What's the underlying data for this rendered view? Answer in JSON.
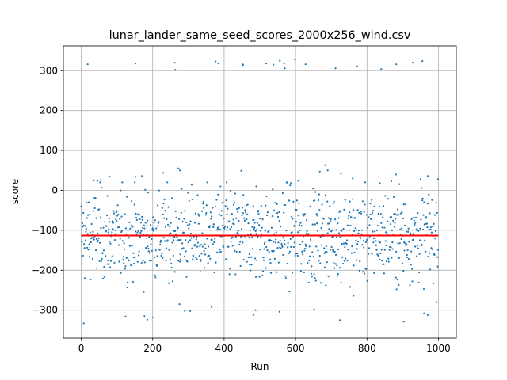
{
  "chart_data": {
    "type": "scatter",
    "title": "lunar_lander_same_seed_scores_2000x256_wind.csv",
    "xlabel": "Run",
    "ylabel": "score",
    "xlim": [
      -50,
      1050
    ],
    "ylim": [
      -370,
      362
    ],
    "xticks": [
      0,
      200,
      400,
      600,
      800,
      1000
    ],
    "yticks": [
      -300,
      -200,
      -100,
      0,
      100,
      200,
      300
    ],
    "grid": true,
    "marker_color": "#1f77b4",
    "mean_line": {
      "y": -113,
      "x_range": [
        0,
        1000
      ],
      "color": "#ff0000"
    },
    "series": [
      {
        "points": [
          [
            18,
            316
          ],
          [
            152,
            318
          ],
          [
            262,
            320
          ],
          [
            263,
            302
          ],
          [
            376,
            323
          ],
          [
            384,
            318
          ],
          [
            452,
            316
          ],
          [
            453,
            314
          ],
          [
            518,
            318
          ],
          [
            538,
            315
          ],
          [
            556,
            325
          ],
          [
            568,
            318
          ],
          [
            570,
            306
          ],
          [
            598,
            328
          ],
          [
            628,
            316
          ],
          [
            712,
            306
          ],
          [
            772,
            311
          ],
          [
            840,
            304
          ],
          [
            882,
            316
          ],
          [
            928,
            320
          ],
          [
            955,
            324
          ],
          [
            7,
            -333
          ],
          [
            124,
            -316
          ],
          [
            177,
            -315
          ],
          [
            185,
            -324
          ],
          [
            200,
            -318
          ],
          [
            275,
            -285
          ],
          [
            290,
            -302
          ],
          [
            305,
            -302
          ],
          [
            365,
            -292
          ],
          [
            482,
            -312
          ],
          [
            488,
            -300
          ],
          [
            555,
            -304
          ],
          [
            652,
            -298
          ],
          [
            724,
            -325
          ],
          [
            762,
            -264
          ],
          [
            903,
            -329
          ],
          [
            960,
            -308
          ],
          [
            970,
            -312
          ],
          [
            35,
            25
          ],
          [
            45,
            24
          ],
          [
            55,
            26
          ],
          [
            79,
            35
          ],
          [
            152,
            34
          ],
          [
            170,
            36
          ],
          [
            230,
            44
          ],
          [
            272,
            55
          ],
          [
            276,
            50
          ],
          [
            390,
            10
          ],
          [
            448,
            49
          ],
          [
            490,
            10
          ],
          [
            587,
            18
          ],
          [
            608,
            24
          ],
          [
            668,
            47
          ],
          [
            683,
            63
          ],
          [
            690,
            50
          ],
          [
            727,
            42
          ],
          [
            760,
            30
          ],
          [
            836,
            18
          ],
          [
            868,
            23
          ],
          [
            881,
            40
          ],
          [
            950,
            28
          ],
          [
            970,
            36
          ],
          [
            999,
            28
          ]
        ]
      }
    ]
  }
}
